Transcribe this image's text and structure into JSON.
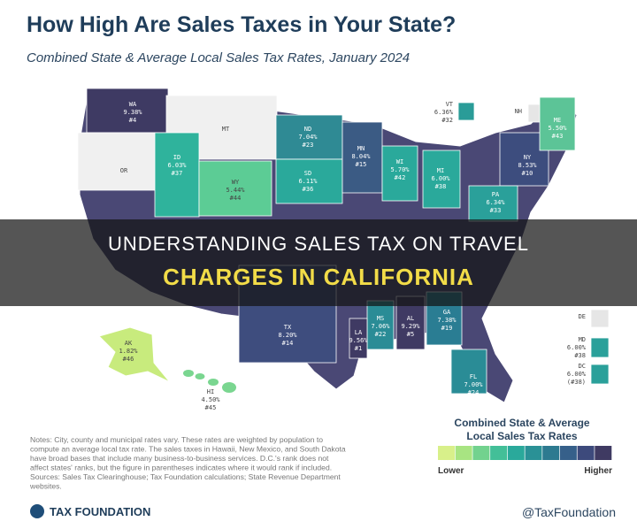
{
  "header": {
    "title": "How High Are Sales Taxes in Your State?",
    "subtitle": "Combined State & Average Local Sales Tax Rates, January 2024"
  },
  "states": [
    {
      "abbr": "WA",
      "rate": "9.38%",
      "rank": "#4",
      "color": "#3e3a63"
    },
    {
      "abbr": "OR",
      "color": "#f0f0f0"
    },
    {
      "abbr": "MT",
      "color": "#f0f0f0"
    },
    {
      "abbr": "ID",
      "rate": "6.03%",
      "rank": "#37",
      "color": "#2fb39c"
    },
    {
      "abbr": "WY",
      "rate": "5.44%",
      "rank": "#44",
      "color": "#5ccc95"
    },
    {
      "abbr": "ND",
      "rate": "7.04%",
      "rank": "#23",
      "color": "#2f8a94"
    },
    {
      "abbr": "SD",
      "rate": "6.11%",
      "rank": "#36",
      "color": "#2aa99b"
    },
    {
      "abbr": "MN",
      "rate": "8.04%",
      "rank": "#15",
      "color": "#3b5b84"
    },
    {
      "abbr": "WI",
      "rate": "5.70%",
      "rank": "#42",
      "color": "#2aa99b"
    },
    {
      "abbr": "MI",
      "rate": "6.00%",
      "rank": "#38",
      "color": "#2aa99b"
    },
    {
      "abbr": "NY",
      "rate": "8.53%",
      "rank": "#10",
      "color": "#3d4d7e"
    },
    {
      "abbr": "VT",
      "rate": "6.36%",
      "rank": "#32",
      "color": "#2a9c98"
    },
    {
      "abbr": "NH",
      "color": "#e6e6e6"
    },
    {
      "abbr": "ME",
      "rate": "5.50%",
      "rank": "#43",
      "color": "#5cc497"
    },
    {
      "abbr": "PA",
      "rate": "6.34%",
      "rank": "#33",
      "color": "#2aa09a"
    },
    {
      "abbr": "TX",
      "rate": "8.20%",
      "rank": "#14",
      "color": "#3e4d7e"
    },
    {
      "abbr": "MS",
      "rate": "7.06%",
      "rank": "#22",
      "color": "#2a8c96"
    },
    {
      "abbr": "LA",
      "rate": "9.56%",
      "rank": "#1",
      "color": "#3f3a63"
    },
    {
      "abbr": "AL",
      "rate": "9.29%",
      "rank": "#5",
      "color": "#3f3a63"
    },
    {
      "abbr": "GA",
      "rate": "7.38%",
      "rank": "#19",
      "color": "#2a7d93"
    },
    {
      "abbr": "FL",
      "rate": "7.00%",
      "rank": "#24",
      "color": "#2a8c96"
    },
    {
      "abbr": "AK",
      "rate": "1.82%",
      "rank": "#46",
      "color": "#c8eb7d"
    },
    {
      "abbr": "HI",
      "rate": "4.50%",
      "rank": "#45",
      "color": "#7ad690"
    },
    {
      "abbr": "MD",
      "rate": "6.00%",
      "rank": "#38",
      "color": "#2aa09a"
    },
    {
      "abbr": "DC",
      "rate": "6.00%",
      "rank": "(#38)",
      "color": "#2aa09a"
    },
    {
      "abbr": "DE",
      "color": "#e6e6e6"
    }
  ],
  "banner": {
    "line1": "UNDERSTANDING SALES TAX ON TRAVEL",
    "line2": "CHARGES IN CALIFORNIA"
  },
  "legend": {
    "title": [
      "Combined State & Average",
      "Local Sales Tax Rates"
    ],
    "low": "Lower",
    "high": "Higher",
    "colors": [
      "#d8f08a",
      "#a8e482",
      "#72d28e",
      "#43bf98",
      "#2aa99b",
      "#2a9196",
      "#2d7a90",
      "#36608a",
      "#3d4a7c",
      "#3f3a62"
    ]
  },
  "notes": [
    "Notes: City, county and municipal rates vary. These rates are weighted by population to",
    "compute an average local tax rate. The sales taxes in Hawaii, New Mexico, and South Dakota",
    "have broad bases that include many business-to-business services. D.C.'s rank does not",
    "affect states' ranks, but the figure in parentheses indicates where it would rank if included.",
    "Sources: Sales Tax Clearinghouse; Tax Foundation calculations; State Revenue Department",
    "websites."
  ],
  "footer": {
    "brand": "TAX FOUNDATION",
    "handle": "@TaxFoundation"
  }
}
